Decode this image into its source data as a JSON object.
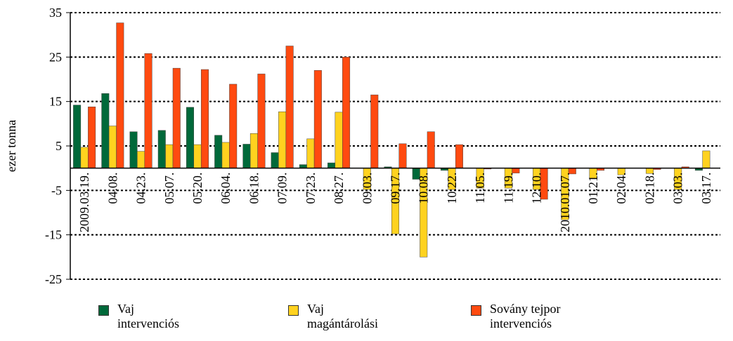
{
  "chart_data": {
    "type": "bar",
    "y_label": "ezer tonna",
    "categories": [
      "2009.03.19.",
      "04.08.",
      "04.23.",
      "05.07.",
      "05.20.",
      "06.04.",
      "06.18.",
      "07.09.",
      "07.23.",
      "08.27.",
      "09.03.",
      "09.17.",
      "10.08.",
      "10.22.",
      "11.05.",
      "11.19.",
      "12.10.",
      "2010.01.07.",
      "01.21.",
      "02.04.",
      "02.18.",
      "03.03.",
      "03.17."
    ],
    "series": [
      {
        "name": "Vaj\nintervenciós",
        "color": "#00693a",
        "values": [
          14.2,
          16.8,
          8.2,
          8.5,
          13.7,
          7.4,
          5.4,
          3.5,
          0.8,
          1.2,
          0,
          0.3,
          -2.5,
          -0.5,
          0,
          0,
          0,
          0,
          0,
          0,
          0,
          0,
          -0.5
        ]
      },
      {
        "name": "Vaj\nmagántárolási",
        "color": "#ffd21f",
        "values": [
          4.7,
          9.5,
          3.8,
          5.3,
          5.3,
          5.8,
          7.8,
          12.7,
          6.6,
          12.6,
          -4.8,
          -14.8,
          -20,
          -4.8,
          -4.5,
          -4.5,
          -4.8,
          -11.6,
          -2.4,
          -1.5,
          -1.2,
          -4.8,
          3.9
        ]
      },
      {
        "name": "Sovány tejpor\nintervenciós",
        "color": "#ff4a10",
        "values": [
          13.8,
          32.7,
          25.8,
          22.5,
          22.2,
          18.9,
          21.2,
          27.5,
          22.0,
          25.0,
          16.5,
          5.5,
          8.2,
          5.3,
          -0.2,
          -1.1,
          -7,
          -1.3,
          -0.5,
          0,
          -0.3,
          0.3,
          0
        ]
      }
    ],
    "ylim": [
      -25,
      35
    ],
    "yticks": [
      -25,
      -15,
      -5,
      5,
      15,
      25,
      35
    ],
    "grid": true
  }
}
